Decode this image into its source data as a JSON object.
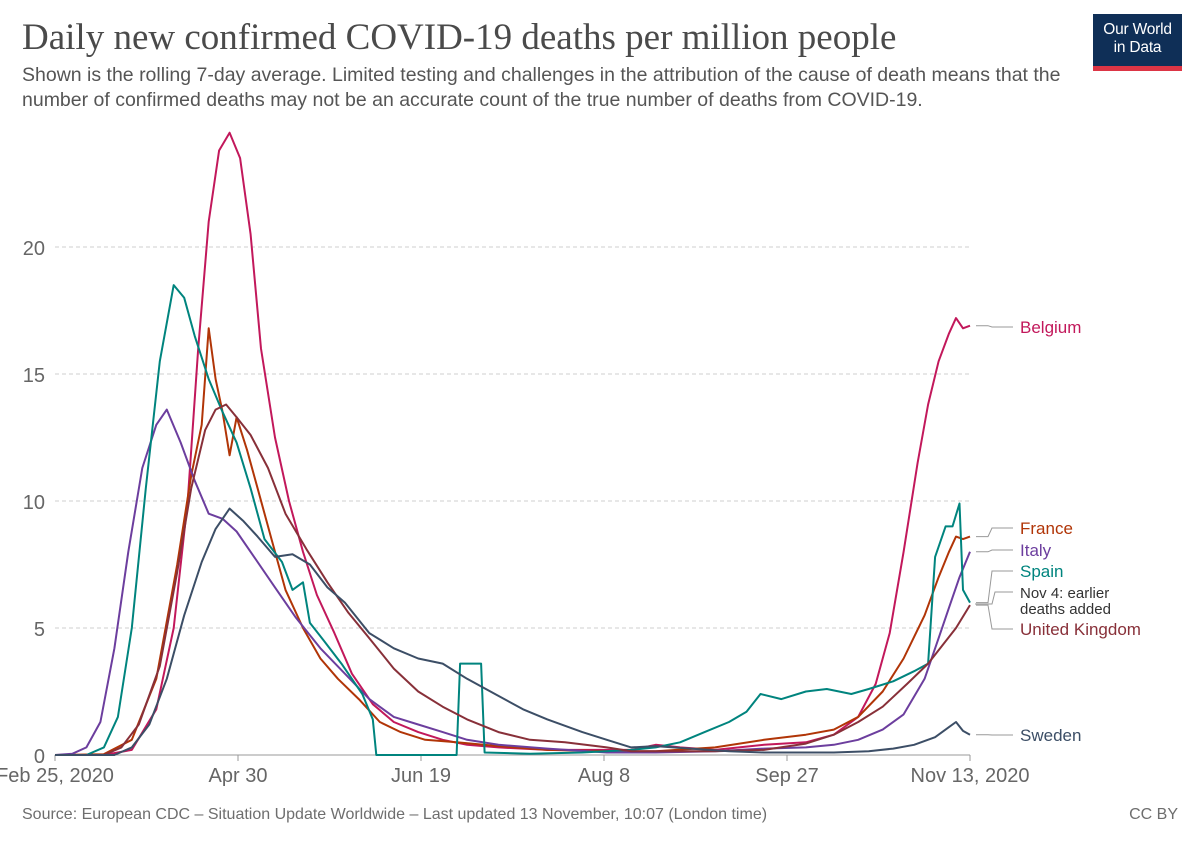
{
  "header": {
    "title": "Daily new confirmed COVID-19 deaths per million people",
    "subtitle": "Shown is the rolling 7-day average. Limited testing and challenges in the attribution of the cause of death means that the number of confirmed deaths may not be an accurate count of the true number of deaths from COVID-19."
  },
  "logo": {
    "line1": "Our World",
    "line2": "in Data"
  },
  "footer": {
    "source": "Source: European CDC – Situation Update Worldwide – Last updated 13 November, 10:07 (London time)",
    "license": "CC BY"
  },
  "chart_data": {
    "type": "line",
    "title": "Daily new confirmed COVID-19 deaths per million people",
    "x_start": "2020-02-25",
    "x_end": "2020-11-13",
    "xticks": [
      "Feb 25, 2020",
      "Apr 30",
      "Jun 19",
      "Aug 8",
      "Sep 27",
      "Nov 13, 2020"
    ],
    "ylim": [
      0,
      25
    ],
    "yticks": [
      0,
      5,
      10,
      15,
      20
    ],
    "grid": true,
    "legend": "labels at line ends (right)",
    "annotation": "Nov 4: earlier deaths added",
    "series": [
      {
        "name": "Belgium",
        "color": "#c2185b",
        "points": [
          [
            "2020-02-25",
            0
          ],
          [
            "2020-03-10",
            0
          ],
          [
            "2020-03-18",
            0.2
          ],
          [
            "2020-03-25",
            1.8
          ],
          [
            "2020-03-30",
            5
          ],
          [
            "2020-04-03",
            10
          ],
          [
            "2020-04-06",
            16
          ],
          [
            "2020-04-09",
            21
          ],
          [
            "2020-04-12",
            23.8
          ],
          [
            "2020-04-15",
            24.5
          ],
          [
            "2020-04-18",
            23.5
          ],
          [
            "2020-04-21",
            20.5
          ],
          [
            "2020-04-24",
            16
          ],
          [
            "2020-04-28",
            12.5
          ],
          [
            "2020-05-02",
            10
          ],
          [
            "2020-05-06",
            8
          ],
          [
            "2020-05-10",
            6.3
          ],
          [
            "2020-05-15",
            4.8
          ],
          [
            "2020-05-20",
            3.2
          ],
          [
            "2020-05-26",
            2
          ],
          [
            "2020-06-01",
            1.3
          ],
          [
            "2020-06-08",
            0.9
          ],
          [
            "2020-06-15",
            0.6
          ],
          [
            "2020-06-22",
            0.4
          ],
          [
            "2020-07-01",
            0.3
          ],
          [
            "2020-07-15",
            0.2
          ],
          [
            "2020-08-01",
            0.2
          ],
          [
            "2020-08-08",
            0.2
          ],
          [
            "2020-08-15",
            0.4
          ],
          [
            "2020-08-22",
            0.3
          ],
          [
            "2020-09-01",
            0.2
          ],
          [
            "2020-09-15",
            0.4
          ],
          [
            "2020-09-27",
            0.5
          ],
          [
            "2020-10-05",
            0.8
          ],
          [
            "2020-10-12",
            1.5
          ],
          [
            "2020-10-17",
            2.8
          ],
          [
            "2020-10-21",
            4.8
          ],
          [
            "2020-10-25",
            8
          ],
          [
            "2020-10-29",
            11.5
          ],
          [
            "2020-11-01",
            13.8
          ],
          [
            "2020-11-04",
            15.5
          ],
          [
            "2020-11-07",
            16.6
          ],
          [
            "2020-11-09",
            17.2
          ],
          [
            "2020-11-11",
            16.8
          ],
          [
            "2020-11-13",
            16.9
          ]
        ]
      },
      {
        "name": "France",
        "color": "#b13507",
        "points": [
          [
            "2020-02-25",
            0
          ],
          [
            "2020-03-10",
            0.03
          ],
          [
            "2020-03-18",
            0.6
          ],
          [
            "2020-03-25",
            3
          ],
          [
            "2020-03-31",
            7.5
          ],
          [
            "2020-04-04",
            11
          ],
          [
            "2020-04-07",
            13
          ],
          [
            "2020-04-09",
            16.8
          ],
          [
            "2020-04-11",
            14.8
          ],
          [
            "2020-04-13",
            13.5
          ],
          [
            "2020-04-15",
            11.8
          ],
          [
            "2020-04-17",
            13.3
          ],
          [
            "2020-04-20",
            12
          ],
          [
            "2020-04-23",
            10.5
          ],
          [
            "2020-04-27",
            8.5
          ],
          [
            "2020-05-01",
            6.5
          ],
          [
            "2020-05-06",
            5
          ],
          [
            "2020-05-11",
            3.8
          ],
          [
            "2020-05-16",
            3
          ],
          [
            "2020-05-22",
            2.2
          ],
          [
            "2020-05-28",
            1.3
          ],
          [
            "2020-06-03",
            0.9
          ],
          [
            "2020-06-10",
            0.6
          ],
          [
            "2020-06-19",
            0.5
          ],
          [
            "2020-07-01",
            0.35
          ],
          [
            "2020-07-15",
            0.2
          ],
          [
            "2020-08-01",
            0.15
          ],
          [
            "2020-08-15",
            0.15
          ],
          [
            "2020-09-01",
            0.3
          ],
          [
            "2020-09-15",
            0.6
          ],
          [
            "2020-09-27",
            0.8
          ],
          [
            "2020-10-05",
            1.0
          ],
          [
            "2020-10-12",
            1.5
          ],
          [
            "2020-10-19",
            2.5
          ],
          [
            "2020-10-25",
            3.8
          ],
          [
            "2020-10-31",
            5.5
          ],
          [
            "2020-11-04",
            7
          ],
          [
            "2020-11-07",
            8
          ],
          [
            "2020-11-09",
            8.6
          ],
          [
            "2020-11-11",
            8.5
          ],
          [
            "2020-11-13",
            8.6
          ]
        ]
      },
      {
        "name": "Italy",
        "color": "#6c3e9e",
        "points": [
          [
            "2020-02-25",
            0
          ],
          [
            "2020-03-01",
            0.05
          ],
          [
            "2020-03-05",
            0.3
          ],
          [
            "2020-03-09",
            1.3
          ],
          [
            "2020-03-13",
            4.2
          ],
          [
            "2020-03-17",
            8
          ],
          [
            "2020-03-21",
            11.3
          ],
          [
            "2020-03-25",
            13
          ],
          [
            "2020-03-28",
            13.6
          ],
          [
            "2020-04-01",
            12.3
          ],
          [
            "2020-04-05",
            10.8
          ],
          [
            "2020-04-09",
            9.5
          ],
          [
            "2020-04-13",
            9.3
          ],
          [
            "2020-04-17",
            8.8
          ],
          [
            "2020-04-22",
            7.8
          ],
          [
            "2020-04-28",
            6.6
          ],
          [
            "2020-05-04",
            5.4
          ],
          [
            "2020-05-11",
            4.2
          ],
          [
            "2020-05-18",
            3.2
          ],
          [
            "2020-05-25",
            2.2
          ],
          [
            "2020-06-01",
            1.5
          ],
          [
            "2020-06-08",
            1.2
          ],
          [
            "2020-06-15",
            0.9
          ],
          [
            "2020-06-22",
            0.6
          ],
          [
            "2020-07-01",
            0.4
          ],
          [
            "2020-07-15",
            0.25
          ],
          [
            "2020-08-01",
            0.1
          ],
          [
            "2020-08-15",
            0.1
          ],
          [
            "2020-09-01",
            0.15
          ],
          [
            "2020-09-15",
            0.25
          ],
          [
            "2020-09-27",
            0.3
          ],
          [
            "2020-10-05",
            0.4
          ],
          [
            "2020-10-12",
            0.6
          ],
          [
            "2020-10-19",
            1.0
          ],
          [
            "2020-10-25",
            1.6
          ],
          [
            "2020-10-31",
            3
          ],
          [
            "2020-11-04",
            4.6
          ],
          [
            "2020-11-07",
            5.8
          ],
          [
            "2020-11-10",
            7
          ],
          [
            "2020-11-13",
            8.0
          ]
        ]
      },
      {
        "name": "Spain",
        "color": "#00847e",
        "points": [
          [
            "2020-02-25",
            0
          ],
          [
            "2020-03-05",
            0
          ],
          [
            "2020-03-10",
            0.3
          ],
          [
            "2020-03-14",
            1.5
          ],
          [
            "2020-03-18",
            5
          ],
          [
            "2020-03-22",
            10.5
          ],
          [
            "2020-03-26",
            15.5
          ],
          [
            "2020-03-30",
            18.5
          ],
          [
            "2020-04-02",
            18
          ],
          [
            "2020-04-05",
            16.5
          ],
          [
            "2020-04-09",
            14.8
          ],
          [
            "2020-04-13",
            13.5
          ],
          [
            "2020-04-17",
            12.3
          ],
          [
            "2020-04-21",
            10.5
          ],
          [
            "2020-04-25",
            8.5
          ],
          [
            "2020-04-30",
            7.6
          ],
          [
            "2020-05-03",
            6.5
          ],
          [
            "2020-05-06",
            6.8
          ],
          [
            "2020-05-08",
            5.2
          ],
          [
            "2020-05-12",
            4.5
          ],
          [
            "2020-05-17",
            3.6
          ],
          [
            "2020-05-23",
            2.4
          ],
          [
            "2020-05-26",
            1.4
          ],
          [
            "2020-05-27",
            0
          ],
          [
            "2020-06-19",
            0
          ],
          [
            "2020-06-20",
            3.6
          ],
          [
            "2020-06-26",
            3.6
          ],
          [
            "2020-06-27",
            0.1
          ],
          [
            "2020-07-10",
            0.05
          ],
          [
            "2020-07-25",
            0.1
          ],
          [
            "2020-08-08",
            0.2
          ],
          [
            "2020-08-15",
            0.3
          ],
          [
            "2020-08-22",
            0.5
          ],
          [
            "2020-08-29",
            0.9
          ],
          [
            "2020-09-05",
            1.3
          ],
          [
            "2020-09-10",
            1.7
          ],
          [
            "2020-09-14",
            2.4
          ],
          [
            "2020-09-20",
            2.2
          ],
          [
            "2020-09-27",
            2.5
          ],
          [
            "2020-10-03",
            2.6
          ],
          [
            "2020-10-10",
            2.4
          ],
          [
            "2020-10-15",
            2.6
          ],
          [
            "2020-10-22",
            2.9
          ],
          [
            "2020-10-28",
            3.3
          ],
          [
            "2020-11-01",
            3.6
          ],
          [
            "2020-11-03",
            7.8
          ],
          [
            "2020-11-06",
            9
          ],
          [
            "2020-11-08",
            9.0
          ],
          [
            "2020-11-10",
            9.9
          ],
          [
            "2020-11-11",
            6.5
          ],
          [
            "2020-11-13",
            6.0
          ]
        ]
      },
      {
        "name": "United Kingdom",
        "color": "#883039",
        "points": [
          [
            "2020-02-25",
            0
          ],
          [
            "2020-03-10",
            0
          ],
          [
            "2020-03-15",
            0.3
          ],
          [
            "2020-03-20",
            1.2
          ],
          [
            "2020-03-26",
            3.5
          ],
          [
            "2020-03-31",
            7.2
          ],
          [
            "2020-04-04",
            10.5
          ],
          [
            "2020-04-08",
            12.8
          ],
          [
            "2020-04-11",
            13.6
          ],
          [
            "2020-04-14",
            13.8
          ],
          [
            "2020-04-17",
            13.3
          ],
          [
            "2020-04-21",
            12.6
          ],
          [
            "2020-04-26",
            11.3
          ],
          [
            "2020-05-01",
            9.5
          ],
          [
            "2020-05-07",
            8.1
          ],
          [
            "2020-05-13",
            6.8
          ],
          [
            "2020-05-19",
            5.6
          ],
          [
            "2020-05-25",
            4.6
          ],
          [
            "2020-06-01",
            3.4
          ],
          [
            "2020-06-08",
            2.5
          ],
          [
            "2020-06-15",
            1.9
          ],
          [
            "2020-06-22",
            1.4
          ],
          [
            "2020-07-01",
            0.9
          ],
          [
            "2020-07-10",
            0.6
          ],
          [
            "2020-07-20",
            0.5
          ],
          [
            "2020-08-01",
            0.3
          ],
          [
            "2020-08-08",
            0.15
          ],
          [
            "2020-08-20",
            0.15
          ],
          [
            "2020-09-01",
            0.15
          ],
          [
            "2020-09-15",
            0.2
          ],
          [
            "2020-09-27",
            0.45
          ],
          [
            "2020-10-05",
            0.8
          ],
          [
            "2020-10-12",
            1.3
          ],
          [
            "2020-10-19",
            1.9
          ],
          [
            "2020-10-26",
            2.8
          ],
          [
            "2020-11-01",
            3.6
          ],
          [
            "2020-11-05",
            4.3
          ],
          [
            "2020-11-09",
            5.0
          ],
          [
            "2020-11-13",
            5.9
          ]
        ]
      },
      {
        "name": "Sweden",
        "color": "#3c4e66",
        "points": [
          [
            "2020-02-25",
            0
          ],
          [
            "2020-03-13",
            0
          ],
          [
            "2020-03-18",
            0.3
          ],
          [
            "2020-03-23",
            1.2
          ],
          [
            "2020-03-28",
            3
          ],
          [
            "2020-04-02",
            5.5
          ],
          [
            "2020-04-07",
            7.6
          ],
          [
            "2020-04-11",
            8.9
          ],
          [
            "2020-04-15",
            9.7
          ],
          [
            "2020-04-19",
            9.2
          ],
          [
            "2020-04-23",
            8.6
          ],
          [
            "2020-04-28",
            7.8
          ],
          [
            "2020-05-03",
            7.9
          ],
          [
            "2020-05-08",
            7.5
          ],
          [
            "2020-05-13",
            6.6
          ],
          [
            "2020-05-18",
            6
          ],
          [
            "2020-05-25",
            4.8
          ],
          [
            "2020-06-01",
            4.2
          ],
          [
            "2020-06-08",
            3.8
          ],
          [
            "2020-06-15",
            3.6
          ],
          [
            "2020-06-22",
            3.0
          ],
          [
            "2020-06-30",
            2.4
          ],
          [
            "2020-07-08",
            1.8
          ],
          [
            "2020-07-15",
            1.4
          ],
          [
            "2020-07-25",
            0.9
          ],
          [
            "2020-08-01",
            0.6
          ],
          [
            "2020-08-08",
            0.3
          ],
          [
            "2020-08-15",
            0.35
          ],
          [
            "2020-08-25",
            0.25
          ],
          [
            "2020-09-05",
            0.15
          ],
          [
            "2020-09-15",
            0.1
          ],
          [
            "2020-09-27",
            0.1
          ],
          [
            "2020-10-05",
            0.1
          ],
          [
            "2020-10-15",
            0.15
          ],
          [
            "2020-10-22",
            0.25
          ],
          [
            "2020-10-28",
            0.4
          ],
          [
            "2020-11-03",
            0.7
          ],
          [
            "2020-11-07",
            1.1
          ],
          [
            "2020-11-09",
            1.3
          ],
          [
            "2020-11-11",
            0.95
          ],
          [
            "2020-11-13",
            0.8
          ]
        ]
      }
    ]
  }
}
